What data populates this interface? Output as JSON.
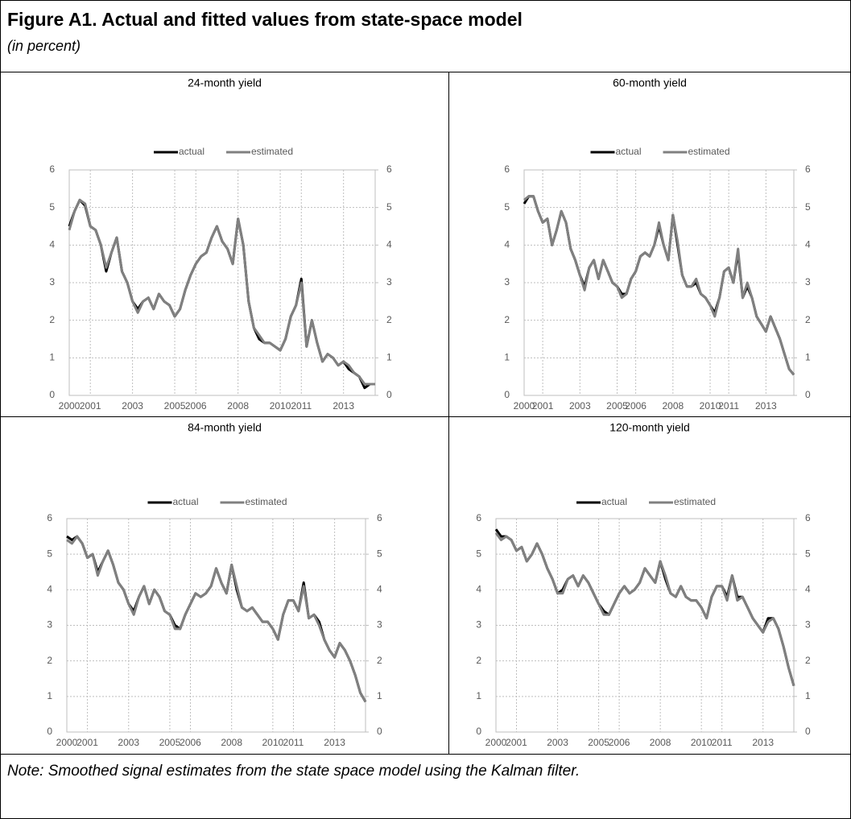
{
  "header": {
    "title": "Figure A1. Actual and fitted values from state-space model",
    "subtitle": "(in percent)"
  },
  "note": "Note: Smoothed signal estimates from the state space model using the Kalman filter.",
  "chart_data": [
    {
      "type": "line",
      "title": "24-month yield",
      "x": [
        2000,
        2000.25,
        2000.5,
        2000.75,
        2001,
        2001.25,
        2001.5,
        2001.75,
        2002,
        2002.25,
        2002.5,
        2002.75,
        2003,
        2003.25,
        2003.5,
        2003.75,
        2004,
        2004.25,
        2004.5,
        2004.75,
        2005,
        2005.25,
        2005.5,
        2005.75,
        2006,
        2006.25,
        2006.5,
        2006.75,
        2007,
        2007.25,
        2007.5,
        2007.75,
        2008,
        2008.25,
        2008.5,
        2008.75,
        2009,
        2009.25,
        2009.5,
        2009.75,
        2010,
        2010.25,
        2010.5,
        2010.75,
        2011,
        2011.25,
        2011.5,
        2011.75,
        2012,
        2012.25,
        2012.5,
        2012.75,
        2013,
        2013.25,
        2013.5,
        2013.75,
        2014,
        2014.25,
        2014.5
      ],
      "series": [
        {
          "name": "actual",
          "color": "#000000",
          "values": [
            4.5,
            4.9,
            5.2,
            5.05,
            4.5,
            4.4,
            4.0,
            3.3,
            3.8,
            4.2,
            3.3,
            3.0,
            2.5,
            2.3,
            2.5,
            2.6,
            2.3,
            2.7,
            2.5,
            2.4,
            2.1,
            2.3,
            2.8,
            3.2,
            3.5,
            3.7,
            3.8,
            4.2,
            4.5,
            4.1,
            3.9,
            3.5,
            4.7,
            4.0,
            2.5,
            1.8,
            1.5,
            1.4,
            1.4,
            1.3,
            1.2,
            1.5,
            2.1,
            2.4,
            3.1,
            1.3,
            2.0,
            1.4,
            0.9,
            1.1,
            1.0,
            0.8,
            0.9,
            0.7,
            0.6,
            0.5,
            0.2,
            0.3,
            0.3
          ]
        },
        {
          "name": "estimated",
          "color": "#808080",
          "values": [
            4.4,
            4.9,
            5.2,
            5.1,
            4.5,
            4.4,
            4.0,
            3.4,
            3.8,
            4.2,
            3.3,
            3.0,
            2.5,
            2.2,
            2.5,
            2.6,
            2.3,
            2.7,
            2.5,
            2.4,
            2.1,
            2.3,
            2.8,
            3.2,
            3.5,
            3.7,
            3.8,
            4.2,
            4.5,
            4.1,
            3.9,
            3.5,
            4.7,
            4.0,
            2.5,
            1.8,
            1.6,
            1.4,
            1.4,
            1.3,
            1.2,
            1.5,
            2.1,
            2.4,
            3.0,
            1.3,
            2.0,
            1.4,
            0.9,
            1.1,
            1.0,
            0.8,
            0.9,
            0.8,
            0.6,
            0.5,
            0.3,
            0.3,
            0.3
          ]
        }
      ],
      "xlim": [
        2000,
        2014.5
      ],
      "xticks": [
        2000,
        2001,
        2003,
        2005,
        2006,
        2008,
        2010,
        2011,
        2013
      ],
      "ylim": [
        0,
        6
      ],
      "yticks": [
        0,
        1,
        2,
        3,
        4,
        5,
        6
      ],
      "y2lim": [
        0,
        6
      ],
      "y2ticks": [
        0,
        1,
        2,
        3,
        4,
        5,
        6
      ],
      "grid": true,
      "legend": "top"
    },
    {
      "type": "line",
      "title": "60-month yield",
      "x": [
        2000,
        2000.25,
        2000.5,
        2000.75,
        2001,
        2001.25,
        2001.5,
        2001.75,
        2002,
        2002.25,
        2002.5,
        2002.75,
        2003,
        2003.25,
        2003.5,
        2003.75,
        2004,
        2004.25,
        2004.5,
        2004.75,
        2005,
        2005.25,
        2005.5,
        2005.75,
        2006,
        2006.25,
        2006.5,
        2006.75,
        2007,
        2007.25,
        2007.5,
        2007.75,
        2008,
        2008.25,
        2008.5,
        2008.75,
        2009,
        2009.25,
        2009.5,
        2009.75,
        2010,
        2010.25,
        2010.5,
        2010.75,
        2011,
        2011.25,
        2011.5,
        2011.75,
        2012,
        2012.25,
        2012.5,
        2012.75,
        2013,
        2013.25,
        2013.5,
        2013.75,
        2014,
        2014.25,
        2014.5
      ],
      "series": [
        {
          "name": "actual",
          "color": "#000000",
          "values": [
            5.1,
            5.3,
            5.3,
            4.9,
            4.6,
            4.7,
            4.0,
            4.4,
            4.9,
            4.6,
            3.9,
            3.6,
            3.2,
            2.9,
            3.4,
            3.6,
            3.1,
            3.6,
            3.3,
            3.0,
            2.9,
            2.7,
            2.7,
            3.1,
            3.3,
            3.7,
            3.8,
            3.7,
            4.0,
            4.5,
            4.0,
            3.6,
            4.8,
            4.0,
            3.2,
            2.9,
            2.9,
            3.0,
            2.7,
            2.6,
            2.4,
            2.2,
            2.6,
            3.3,
            3.4,
            3.0,
            3.8,
            2.6,
            2.9,
            2.6,
            2.1,
            1.9,
            1.7,
            2.1,
            1.8,
            1.5,
            1.1,
            0.7,
            0.55
          ]
        },
        {
          "name": "estimated",
          "color": "#808080",
          "values": [
            5.2,
            5.3,
            5.3,
            4.9,
            4.6,
            4.7,
            4.0,
            4.4,
            4.9,
            4.6,
            3.9,
            3.6,
            3.2,
            2.8,
            3.4,
            3.6,
            3.1,
            3.6,
            3.3,
            3.0,
            2.9,
            2.6,
            2.7,
            3.1,
            3.3,
            3.7,
            3.8,
            3.7,
            4.0,
            4.6,
            4.0,
            3.6,
            4.8,
            4.1,
            3.2,
            2.9,
            2.9,
            3.1,
            2.7,
            2.6,
            2.4,
            2.1,
            2.6,
            3.3,
            3.4,
            3.0,
            3.9,
            2.6,
            3.0,
            2.6,
            2.1,
            1.9,
            1.7,
            2.1,
            1.8,
            1.5,
            1.1,
            0.7,
            0.55
          ]
        }
      ],
      "xlim": [
        2000,
        2014.5
      ],
      "xticks": [
        2000,
        2001,
        2003,
        2005,
        2006,
        2008,
        2010,
        2011,
        2013
      ],
      "ylim": [
        0,
        6
      ],
      "yticks": [
        0,
        1,
        2,
        3,
        4,
        5,
        6
      ],
      "y2lim": [
        0,
        6
      ],
      "y2ticks": [
        0,
        1,
        2,
        3,
        4,
        5,
        6
      ],
      "grid": true,
      "legend": "top"
    },
    {
      "type": "line",
      "title": "84-month yield",
      "x": [
        2000,
        2000.25,
        2000.5,
        2000.75,
        2001,
        2001.25,
        2001.5,
        2001.75,
        2002,
        2002.25,
        2002.5,
        2002.75,
        2003,
        2003.25,
        2003.5,
        2003.75,
        2004,
        2004.25,
        2004.5,
        2004.75,
        2005,
        2005.25,
        2005.5,
        2005.75,
        2006,
        2006.25,
        2006.5,
        2006.75,
        2007,
        2007.25,
        2007.5,
        2007.75,
        2008,
        2008.25,
        2008.5,
        2008.75,
        2009,
        2009.25,
        2009.5,
        2009.75,
        2010,
        2010.25,
        2010.5,
        2010.75,
        2011,
        2011.25,
        2011.5,
        2011.75,
        2012,
        2012.25,
        2012.5,
        2012.75,
        2013,
        2013.25,
        2013.5,
        2013.75,
        2014,
        2014.25,
        2014.5
      ],
      "series": [
        {
          "name": "actual",
          "color": "#000000",
          "values": [
            5.5,
            5.4,
            5.5,
            5.3,
            4.9,
            5.0,
            4.5,
            4.8,
            5.1,
            4.7,
            4.2,
            4.0,
            3.6,
            3.4,
            3.8,
            4.1,
            3.6,
            4.0,
            3.8,
            3.4,
            3.3,
            3.0,
            2.9,
            3.3,
            3.6,
            3.9,
            3.8,
            3.9,
            4.1,
            4.6,
            4.2,
            3.9,
            4.7,
            4.0,
            3.5,
            3.4,
            3.5,
            3.3,
            3.1,
            3.1,
            2.9,
            2.6,
            3.3,
            3.7,
            3.7,
            3.4,
            4.2,
            3.2,
            3.3,
            3.1,
            2.6,
            2.3,
            2.1,
            2.5,
            2.3,
            2.0,
            1.6,
            1.1,
            0.85
          ]
        },
        {
          "name": "estimated",
          "color": "#808080",
          "values": [
            5.4,
            5.3,
            5.5,
            5.3,
            4.9,
            5.0,
            4.4,
            4.8,
            5.1,
            4.7,
            4.2,
            4.0,
            3.6,
            3.3,
            3.8,
            4.1,
            3.6,
            4.0,
            3.8,
            3.4,
            3.3,
            2.9,
            2.9,
            3.3,
            3.6,
            3.9,
            3.8,
            3.9,
            4.1,
            4.6,
            4.2,
            3.9,
            4.7,
            4.1,
            3.5,
            3.4,
            3.5,
            3.3,
            3.1,
            3.1,
            2.9,
            2.6,
            3.3,
            3.7,
            3.7,
            3.4,
            4.1,
            3.2,
            3.3,
            3.0,
            2.6,
            2.3,
            2.1,
            2.5,
            2.3,
            2.0,
            1.6,
            1.1,
            0.85
          ]
        }
      ],
      "xlim": [
        2000,
        2014.5
      ],
      "xticks": [
        2000,
        2001,
        2003,
        2005,
        2006,
        2008,
        2010,
        2011,
        2013
      ],
      "ylim": [
        0,
        6
      ],
      "yticks": [
        0,
        1,
        2,
        3,
        4,
        5,
        6
      ],
      "y2lim": [
        0,
        6
      ],
      "y2ticks": [
        0,
        1,
        2,
        3,
        4,
        5,
        6
      ],
      "grid": true,
      "legend": "top"
    },
    {
      "type": "line",
      "title": "120-month yield",
      "x": [
        2000,
        2000.25,
        2000.5,
        2000.75,
        2001,
        2001.25,
        2001.5,
        2001.75,
        2002,
        2002.25,
        2002.5,
        2002.75,
        2003,
        2003.25,
        2003.5,
        2003.75,
        2004,
        2004.25,
        2004.5,
        2004.75,
        2005,
        2005.25,
        2005.5,
        2005.75,
        2006,
        2006.25,
        2006.5,
        2006.75,
        2007,
        2007.25,
        2007.5,
        2007.75,
        2008,
        2008.25,
        2008.5,
        2008.75,
        2009,
        2009.25,
        2009.5,
        2009.75,
        2010,
        2010.25,
        2010.5,
        2010.75,
        2011,
        2011.25,
        2011.5,
        2011.75,
        2012,
        2012.25,
        2012.5,
        2012.75,
        2013,
        2013.25,
        2013.5,
        2013.75,
        2014,
        2014.25,
        2014.5
      ],
      "series": [
        {
          "name": "actual",
          "color": "#000000",
          "values": [
            5.7,
            5.5,
            5.5,
            5.4,
            5.1,
            5.2,
            4.8,
            5.0,
            5.3,
            5.0,
            4.6,
            4.3,
            3.9,
            4.0,
            4.3,
            4.4,
            4.1,
            4.4,
            4.2,
            3.9,
            3.6,
            3.4,
            3.3,
            3.6,
            3.9,
            4.1,
            3.9,
            4.0,
            4.2,
            4.6,
            4.4,
            4.2,
            4.8,
            4.3,
            3.9,
            3.8,
            4.1,
            3.8,
            3.7,
            3.7,
            3.5,
            3.2,
            3.8,
            4.1,
            4.1,
            3.8,
            4.4,
            3.8,
            3.8,
            3.5,
            3.2,
            3.0,
            2.8,
            3.2,
            3.2,
            2.9,
            2.4,
            1.8,
            1.3
          ]
        },
        {
          "name": "estimated",
          "color": "#808080",
          "values": [
            5.6,
            5.4,
            5.5,
            5.4,
            5.1,
            5.2,
            4.8,
            5.0,
            5.3,
            5.0,
            4.6,
            4.3,
            3.9,
            3.9,
            4.3,
            4.4,
            4.1,
            4.4,
            4.2,
            3.9,
            3.6,
            3.3,
            3.3,
            3.6,
            3.9,
            4.1,
            3.9,
            4.0,
            4.2,
            4.6,
            4.4,
            4.2,
            4.8,
            4.4,
            3.9,
            3.8,
            4.1,
            3.8,
            3.7,
            3.7,
            3.5,
            3.2,
            3.8,
            4.1,
            4.1,
            3.7,
            4.4,
            3.7,
            3.8,
            3.5,
            3.2,
            3.0,
            2.8,
            3.1,
            3.2,
            2.9,
            2.4,
            1.8,
            1.3
          ]
        }
      ],
      "xlim": [
        2000,
        2014.5
      ],
      "xticks": [
        2000,
        2001,
        2003,
        2005,
        2006,
        2008,
        2010,
        2011,
        2013
      ],
      "ylim": [
        0,
        6
      ],
      "yticks": [
        0,
        1,
        2,
        3,
        4,
        5,
        6
      ],
      "y2lim": [
        0,
        6
      ],
      "y2ticks": [
        0,
        1,
        2,
        3,
        4,
        5,
        6
      ],
      "grid": true,
      "legend": "top"
    }
  ]
}
